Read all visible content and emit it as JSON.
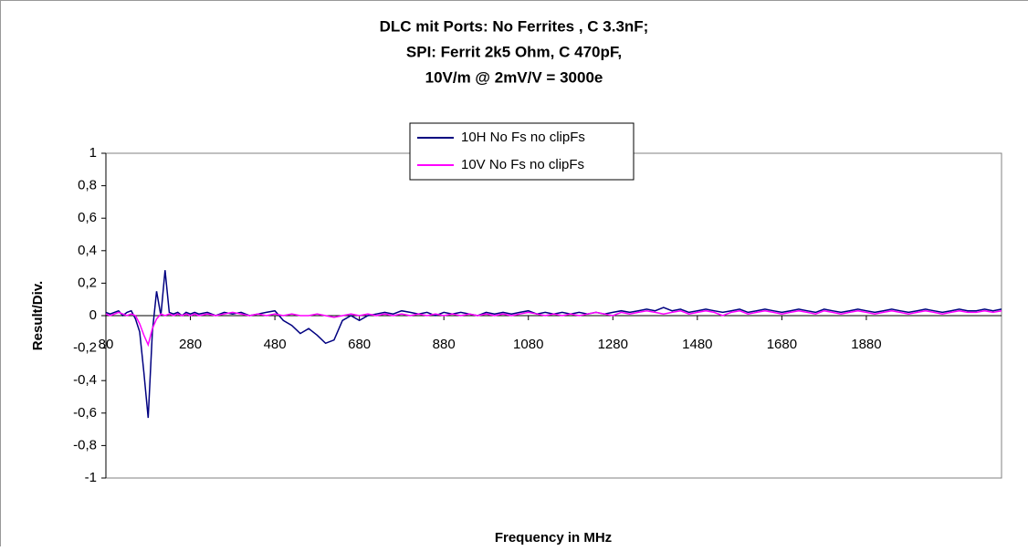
{
  "chart_data": {
    "type": "line",
    "title": [
      "DLC mit Ports: No Ferrites , C 3.3nF;",
      "SPI: Ferrit 2k5 Ohm, C 470pF,",
      "10V/m @ 2mV/V = 3000e"
    ],
    "x_label": "Frequency in MHz",
    "y_label": "Result/Div.",
    "xlim": [
      80,
      2200
    ],
    "ylim": [
      -1,
      1
    ],
    "xticks": [
      80,
      280,
      480,
      680,
      880,
      1080,
      1280,
      1480,
      1680,
      1880
    ],
    "yticks": [
      1,
      {
        "value": 0.8,
        "label": "0,8"
      },
      {
        "value": 0.6,
        "label": "0,6"
      },
      {
        "value": 0.4,
        "label": "0,4"
      },
      {
        "value": 0.2,
        "label": "0,2"
      },
      0,
      {
        "value": -0.2,
        "label": "-0,2"
      },
      {
        "value": -0.4,
        "label": "-0,4"
      },
      {
        "value": -0.6,
        "label": "-0,6"
      },
      {
        "value": -0.8,
        "label": "-0,8"
      },
      -1
    ],
    "legend": "top",
    "x": [
      80,
      90,
      100,
      110,
      120,
      130,
      140,
      150,
      160,
      170,
      180,
      190,
      200,
      210,
      220,
      230,
      240,
      250,
      260,
      270,
      280,
      290,
      300,
      320,
      340,
      360,
      380,
      400,
      420,
      440,
      460,
      480,
      500,
      520,
      540,
      560,
      580,
      600,
      620,
      640,
      660,
      680,
      700,
      720,
      740,
      760,
      780,
      800,
      820,
      840,
      860,
      880,
      900,
      920,
      940,
      960,
      980,
      1000,
      1020,
      1040,
      1060,
      1080,
      1100,
      1120,
      1140,
      1160,
      1180,
      1200,
      1220,
      1240,
      1260,
      1280,
      1300,
      1320,
      1340,
      1360,
      1380,
      1400,
      1420,
      1440,
      1460,
      1480,
      1500,
      1520,
      1540,
      1560,
      1580,
      1600,
      1620,
      1640,
      1660,
      1680,
      1700,
      1720,
      1740,
      1760,
      1780,
      1800,
      1820,
      1840,
      1860,
      1880,
      1900,
      1920,
      1940,
      1960,
      1980,
      2000,
      2020,
      2040,
      2060,
      2080,
      2100,
      2120,
      2140,
      2160,
      2180,
      2200
    ],
    "series": [
      {
        "name": "10H No Fs no clipFs",
        "color": "#000080",
        "values": [
          0.02,
          0.01,
          0.02,
          0.03,
          0.0,
          0.02,
          0.03,
          -0.02,
          -0.1,
          -0.35,
          -0.63,
          -0.1,
          0.15,
          0.0,
          0.28,
          0.02,
          0.01,
          0.02,
          0.0,
          0.02,
          0.01,
          0.02,
          0.01,
          0.02,
          0.0,
          0.02,
          0.01,
          0.02,
          0.0,
          0.01,
          0.02,
          0.03,
          -0.03,
          -0.06,
          -0.11,
          -0.08,
          -0.12,
          -0.17,
          -0.15,
          -0.03,
          0.0,
          -0.03,
          0.0,
          0.01,
          0.02,
          0.01,
          0.03,
          0.02,
          0.01,
          0.02,
          0.0,
          0.02,
          0.01,
          0.02,
          0.01,
          0.0,
          0.02,
          0.01,
          0.02,
          0.01,
          0.02,
          0.03,
          0.01,
          0.02,
          0.01,
          0.02,
          0.01,
          0.02,
          0.01,
          0.02,
          0.01,
          0.02,
          0.03,
          0.02,
          0.03,
          0.04,
          0.03,
          0.05,
          0.03,
          0.04,
          0.02,
          0.03,
          0.04,
          0.03,
          0.02,
          0.03,
          0.04,
          0.02,
          0.03,
          0.04,
          0.03,
          0.02,
          0.03,
          0.04,
          0.03,
          0.02,
          0.04,
          0.03,
          0.02,
          0.03,
          0.04,
          0.03,
          0.02,
          0.03,
          0.04,
          0.03,
          0.02,
          0.03,
          0.04,
          0.03,
          0.02,
          0.03,
          0.04,
          0.03,
          0.03,
          0.04,
          0.03,
          0.04
        ]
      },
      {
        "name": "10V No Fs no clipFs",
        "color": "#ff00ff",
        "values": [
          0.01,
          0.0,
          0.01,
          0.02,
          0.01,
          0.0,
          0.01,
          0.0,
          -0.05,
          -0.12,
          -0.18,
          -0.08,
          -0.02,
          0.01,
          0.0,
          0.01,
          0.0,
          0.01,
          0.0,
          0.01,
          0.0,
          0.01,
          0.0,
          0.01,
          0.0,
          0.01,
          0.02,
          0.01,
          0.0,
          0.01,
          0.0,
          0.01,
          0.0,
          0.01,
          0.0,
          0.0,
          0.01,
          0.0,
          -0.01,
          0.0,
          0.01,
          0.0,
          0.01,
          0.0,
          0.01,
          0.0,
          0.01,
          0.0,
          0.01,
          0.0,
          0.01,
          0.0,
          0.01,
          0.0,
          0.01,
          0.0,
          0.01,
          0.0,
          0.01,
          0.0,
          0.01,
          0.02,
          0.01,
          0.0,
          0.01,
          0.0,
          0.01,
          0.0,
          0.01,
          0.02,
          0.01,
          0.0,
          0.02,
          0.01,
          0.02,
          0.03,
          0.02,
          0.01,
          0.02,
          0.03,
          0.01,
          0.02,
          0.03,
          0.02,
          0.0,
          0.02,
          0.03,
          0.01,
          0.02,
          0.03,
          0.02,
          0.01,
          0.02,
          0.03,
          0.02,
          0.01,
          0.03,
          0.02,
          0.01,
          0.02,
          0.03,
          0.02,
          0.01,
          0.02,
          0.03,
          0.02,
          0.01,
          0.02,
          0.03,
          0.02,
          0.01,
          0.02,
          0.03,
          0.02,
          0.02,
          0.03,
          0.02,
          0.03
        ]
      }
    ]
  }
}
